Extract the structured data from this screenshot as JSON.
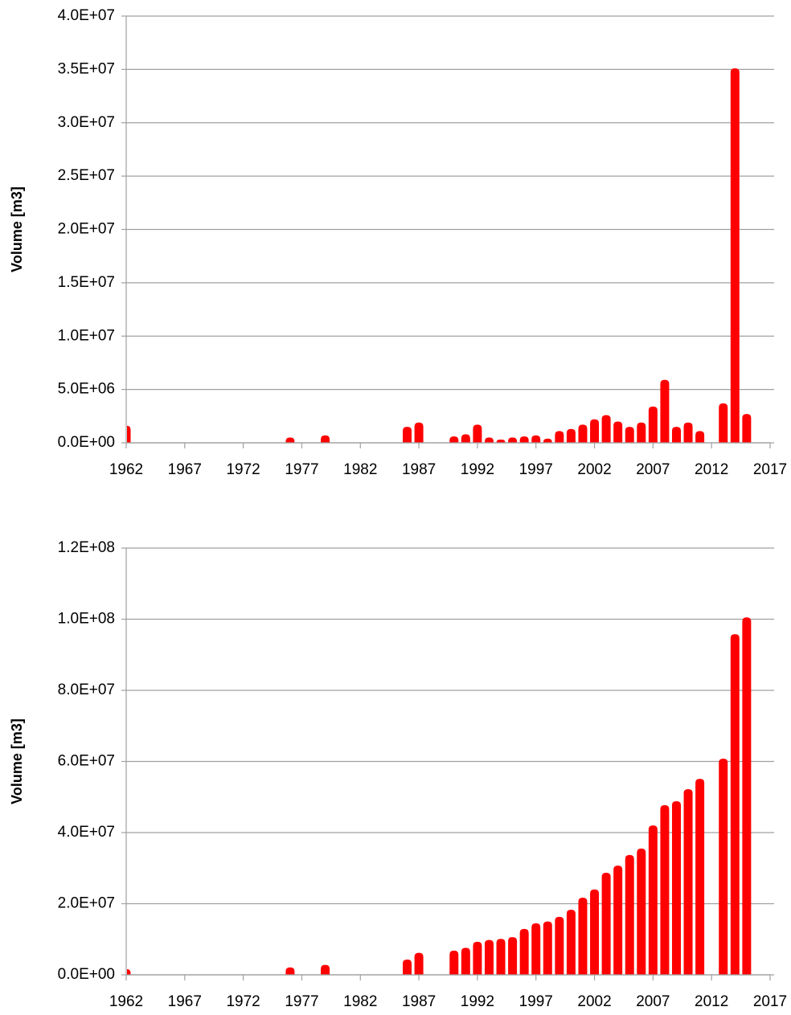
{
  "chart_data": [
    {
      "type": "bar",
      "y_label": "Volume [m3]",
      "color": "#ff0000",
      "grid": true,
      "x": [
        1962,
        1976,
        1979,
        1986,
        1987,
        1990,
        1991,
        1992,
        1993,
        1994,
        1995,
        1996,
        1997,
        1998,
        1999,
        2000,
        2001,
        2002,
        2003,
        2004,
        2005,
        2006,
        2007,
        2008,
        2009,
        2010,
        2011,
        2013,
        2014,
        2015
      ],
      "values": [
        1600000,
        500000,
        700000,
        1500000,
        1900000,
        600000,
        800000,
        1700000,
        500000,
        300000,
        500000,
        600000,
        700000,
        400000,
        1100000,
        1300000,
        1700000,
        2200000,
        2600000,
        2000000,
        1500000,
        1900000,
        3400000,
        5900000,
        1500000,
        1900000,
        1100000,
        3700000,
        35100000,
        2700000
      ],
      "xlim": [
        1962,
        2017
      ],
      "xticks": [
        1962,
        1967,
        1972,
        1977,
        1982,
        1987,
        1992,
        1997,
        2002,
        2007,
        2012,
        2017
      ],
      "ylim": [
        0,
        40000000
      ],
      "yticks": [
        {
          "value": 0,
          "label": "0.0E+00"
        },
        {
          "value": 5000000,
          "label": "5.0E+06"
        },
        {
          "value": 10000000,
          "label": "1.0E+07"
        },
        {
          "value": 15000000,
          "label": "1.5E+07"
        },
        {
          "value": 20000000,
          "label": "2.0E+07"
        },
        {
          "value": 25000000,
          "label": "2.5E+07"
        },
        {
          "value": 30000000,
          "label": "3.0E+07"
        },
        {
          "value": 35000000,
          "label": "3.5E+07"
        },
        {
          "value": 40000000,
          "label": "4.0E+07"
        }
      ]
    },
    {
      "type": "bar",
      "y_label": "Volume [m3]",
      "color": "#ff0000",
      "grid": true,
      "x": [
        1962,
        1976,
        1979,
        1986,
        1987,
        1990,
        1991,
        1992,
        1993,
        1994,
        1995,
        1996,
        1997,
        1998,
        1999,
        2000,
        2001,
        2002,
        2003,
        2004,
        2005,
        2006,
        2007,
        2008,
        2009,
        2010,
        2011,
        2013,
        2014,
        2015
      ],
      "values": [
        1600000,
        2100000,
        2800000,
        4300000,
        6200000,
        6800000,
        7600000,
        9300000,
        9800000,
        10100000,
        10600000,
        12900000,
        14500000,
        15000000,
        16300000,
        18300000,
        21700000,
        24000000,
        28700000,
        30700000,
        33700000,
        35500000,
        42000000,
        47700000,
        48800000,
        52200000,
        55100000,
        60800000,
        95800000,
        100500000
      ],
      "xlim": [
        1962,
        2017
      ],
      "xticks": [
        1962,
        1967,
        1972,
        1977,
        1982,
        1987,
        1992,
        1997,
        2002,
        2007,
        2012,
        2017
      ],
      "ylim": [
        0,
        120000000
      ],
      "yticks": [
        {
          "value": 0,
          "label": "0.0E+00"
        },
        {
          "value": 20000000,
          "label": "2.0E+07"
        },
        {
          "value": 40000000,
          "label": "4.0E+07"
        },
        {
          "value": 60000000,
          "label": "6.0E+07"
        },
        {
          "value": 80000000,
          "label": "8.0E+07"
        },
        {
          "value": 100000000,
          "label": "1.0E+08"
        },
        {
          "value": 120000000,
          "label": "1.2E+08"
        }
      ]
    }
  ]
}
